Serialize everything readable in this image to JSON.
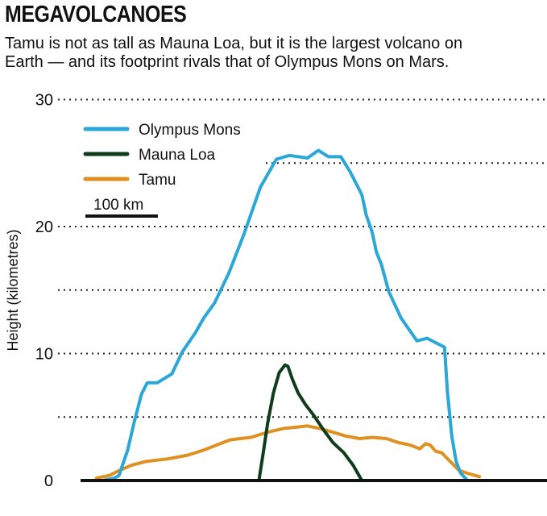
{
  "header": {
    "title": "MEGAVOLCANOES",
    "subtitle_line1": "Tamu is not as tall as Mauna Loa, but it is the largest volcano on",
    "subtitle_line2": "Earth — and its footprint rivals that of Olympus Mons on Mars."
  },
  "chart_data": {
    "type": "line",
    "title": "MEGAVOLCANOES",
    "ylabel": "Height (kilometres)",
    "xlabel": "",
    "ylim": [
      0,
      30
    ],
    "yticks": [
      0,
      10,
      20,
      30
    ],
    "grid": "dotted horizontal lines every 5 km",
    "legend_placement": "top-left",
    "scale_bar_label": "100 km",
    "scale_bar_km": 100,
    "x_unit": "km",
    "series": [
      {
        "name": "Olympus Mons",
        "color": "#2aa7d6",
        "x": [
          0,
          17,
          23,
          35,
          44,
          54,
          62,
          76,
          96,
          110,
          128,
          140,
          155,
          175,
          196,
          218,
          240,
          258,
          283,
          298,
          312,
          329,
          342,
          358,
          364,
          372,
          378,
          385,
          395,
          412,
          434,
          448,
          472,
          476,
          482,
          488,
          494,
          502
        ],
        "y": [
          0,
          0.2,
          0.4,
          2.4,
          4.6,
          6.8,
          7.7,
          7.7,
          8.4,
          10.1,
          11.6,
          12.8,
          14.0,
          16.4,
          19.5,
          23.1,
          25.3,
          25.6,
          25.4,
          26.0,
          25.5,
          25.5,
          24.3,
          22.5,
          20.9,
          19.6,
          18.0,
          17.0,
          14.9,
          12.8,
          11.0,
          11.2,
          10.5,
          7.0,
          3.5,
          1.5,
          0.6,
          0.1
        ]
      },
      {
        "name": "Mauna Loa",
        "color": "#0f3d1c",
        "x": [
          216,
          222,
          228,
          236,
          244,
          252,
          256,
          262,
          270,
          280,
          292,
          305,
          318,
          333,
          346,
          358
        ],
        "y": [
          0,
          2.2,
          4.5,
          6.9,
          8.5,
          9.1,
          9.0,
          8.0,
          6.9,
          6.0,
          5.1,
          4.0,
          3.0,
          2.2,
          1.2,
          0
        ]
      },
      {
        "name": "Tamu",
        "color": "#e0901f",
        "x": [
          -8,
          10,
          20,
          40,
          60,
          90,
          118,
          140,
          158,
          176,
          190,
          205,
          228,
          250,
          267,
          283,
          300,
          318,
          336,
          355,
          372,
          392,
          408,
          424,
          438,
          446,
          452,
          460,
          468,
          478,
          492,
          502,
          520
        ],
        "y": [
          0.2,
          0.4,
          0.7,
          1.2,
          1.5,
          1.7,
          2.0,
          2.4,
          2.8,
          3.2,
          3.3,
          3.4,
          3.8,
          4.1,
          4.2,
          4.3,
          4.1,
          3.8,
          3.5,
          3.3,
          3.4,
          3.3,
          3.0,
          2.8,
          2.5,
          2.9,
          2.8,
          2.3,
          2.2,
          1.6,
          0.8,
          0.6,
          0.3
        ]
      }
    ]
  }
}
